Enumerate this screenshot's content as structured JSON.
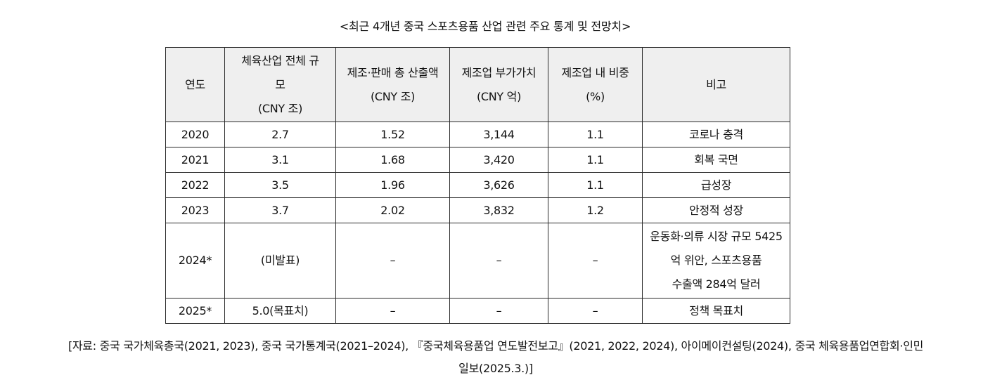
{
  "caption": "<최근 4개년 중국 스포츠용품 산업 관련 주요 통계 및 전망치>",
  "table": {
    "headers": {
      "year": "연도",
      "total_line1": "체육산업 전체 규",
      "total_line2": "모",
      "total_line3": "(CNY 조)",
      "output_line1": "제조·판매 총 산출액",
      "output_line2": "(CNY 조)",
      "value_line1": "제조업 부가가치",
      "value_line2": "(CNY 억)",
      "share_line1": "제조업 내 비중",
      "share_line2": "(%)",
      "note": "비고"
    },
    "rows": [
      {
        "year": "2020",
        "total": "2.7",
        "output": "1.52",
        "value_added": "3,144",
        "share": "1.1",
        "note": "코로나 충격"
      },
      {
        "year": "2021",
        "total": "3.1",
        "output": "1.68",
        "value_added": "3,420",
        "share": "1.1",
        "note": "회복 국면"
      },
      {
        "year": "2022",
        "total": "3.5",
        "output": "1.96",
        "value_added": "3,626",
        "share": "1.1",
        "note": "급성장"
      },
      {
        "year": "2023",
        "total": "3.7",
        "output": "2.02",
        "value_added": "3,832",
        "share": "1.2",
        "note": "안정적 성장"
      },
      {
        "year": "2024*",
        "total": "(미발표)",
        "output": "–",
        "value_added": "–",
        "share": "–",
        "note_line1": "운동화·의류 시장 규모 5425",
        "note_line2": "억 위안, 스포츠용품",
        "note_line3": "수출액 284억 달러"
      },
      {
        "year": "2025*",
        "total": "5.0(목표치)",
        "output": "–",
        "value_added": "–",
        "share": "–",
        "note": "정책 목표치"
      }
    ]
  },
  "source": {
    "line1": "[자료: 중국 국가체육총국(2021, 2023), 중국 국가통계국(2021–2024), 『중국체육용품업 연도발전보고』(2021, 2022, 2024), 아이메이컨설팅(2024), 중국 체육용품업연합회·인민",
    "line2": "일보(2025.3.)]"
  }
}
